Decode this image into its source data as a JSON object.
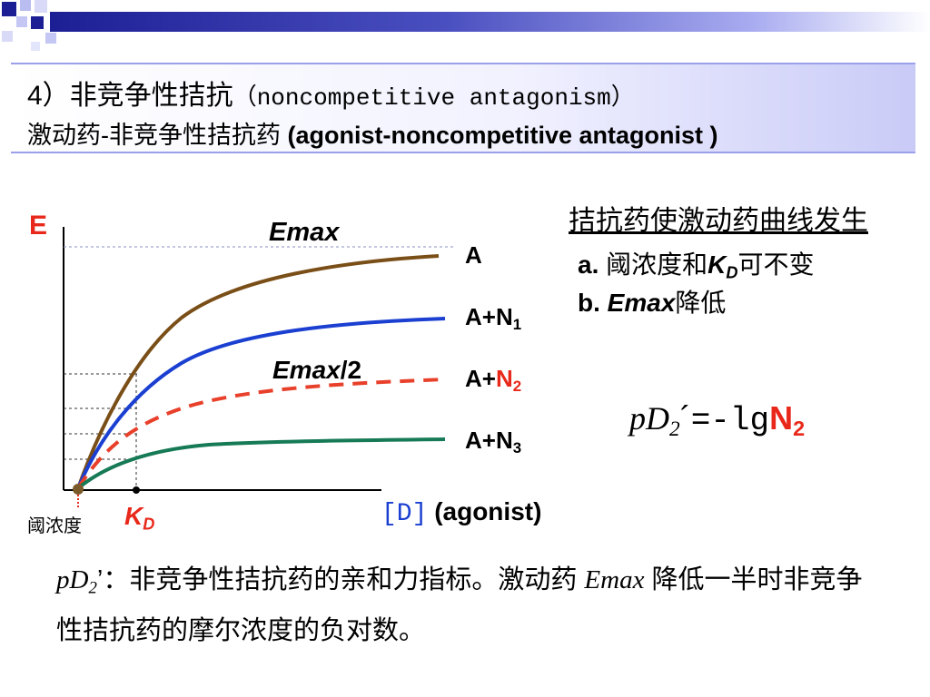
{
  "header": {
    "title_num": "4）",
    "title_cn": "非竞争性拮抗",
    "title_en": "（noncompetitive antagonism）",
    "subtitle_cn": "激动药-非竞争性拮抗药",
    "subtitle_en": "(agonist-noncompetitive antagonist )"
  },
  "graph": {
    "y_axis_label": "E",
    "emax_label": "Emax",
    "emax_half_label_italic": "Emax",
    "emax_half_label_rest": "/2",
    "kd_label_main": "K",
    "kd_label_sub": "D",
    "threshold_label": "阈浓度",
    "x_axis_label_bracket": "[D]",
    "x_axis_label_text": "(agonist)",
    "curves": [
      {
        "label_main": "A",
        "label_sub": "",
        "color": "#7a4e17"
      },
      {
        "label_main": "A+N",
        "label_sub": "1",
        "color": "#1a3fd1"
      },
      {
        "label_main": "A+",
        "label_sub_red": "N",
        "label_sub2": "2",
        "color": "#e8402a"
      },
      {
        "label_main": "A+N",
        "label_sub": "3",
        "color": "#157a55"
      }
    ]
  },
  "right_panel": {
    "title": "拮抗药使激动药曲线发生",
    "item_a_prefix": "a.",
    "item_a_text1": "阈浓度和",
    "item_a_k": "K",
    "item_a_ksub": "D",
    "item_a_text2": "可不变",
    "item_b_prefix": "b.",
    "item_b_emax": "Emax",
    "item_b_text": "降低"
  },
  "formula": {
    "lhs": "pD",
    "lhs_sub": "2",
    "prime": "´",
    "op": "=-lg",
    "rhs": "N",
    "rhs_sub": "2"
  },
  "footnote": {
    "lead": "pD",
    "lead_sub": "2",
    "lead_prime": "’",
    "text1": "：非竞争性拮抗药的亲和力指标。激动药",
    "emax": "Emax",
    "text2": "降低一半时非竞争性拮抗药的摩尔浓度的负对数。"
  }
}
